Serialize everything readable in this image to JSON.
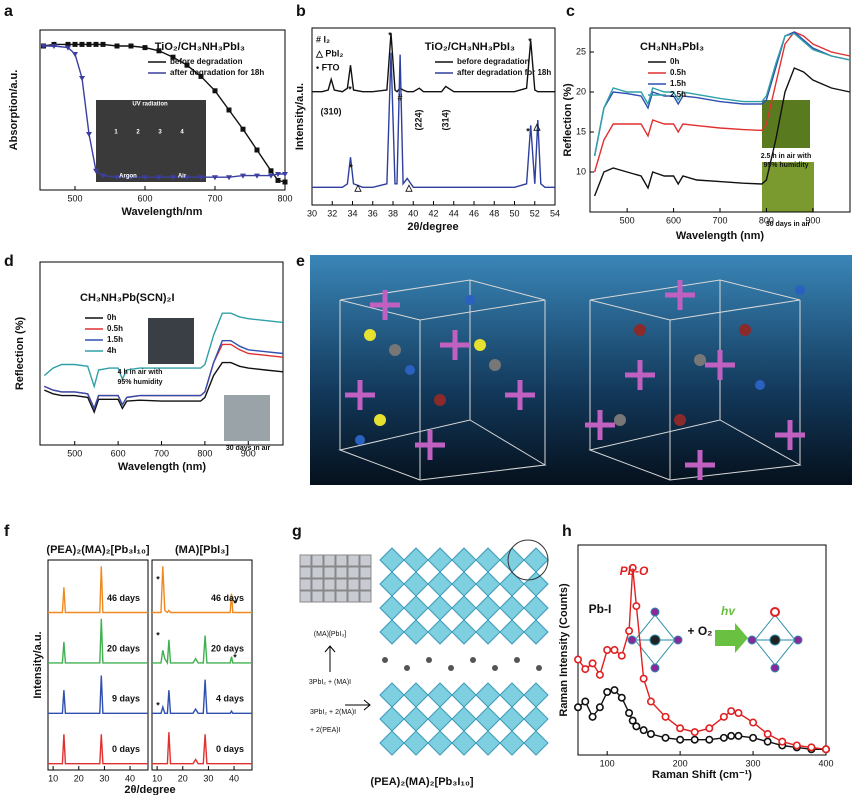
{
  "panel_labels": [
    "a",
    "b",
    "c",
    "d",
    "e",
    "f",
    "g",
    "h"
  ],
  "diagram_g": {
    "labels": [
      "(MA)[PbI₃]",
      "3PbI₂ + (MA)I",
      "3PbI₂ + 2(MA)I",
      "+ 2(PEA)I",
      "(PEA)₂(MA)₂[Pb₃I₁₀]"
    ]
  },
  "chart_data": [
    {
      "type": "line",
      "title": "TiO₂/CH₃NH₃PbI₃",
      "x_label": "Wavelength/nm",
      "y_label": "Absorption/a.u.",
      "x": [
        455,
        470,
        490,
        500,
        510,
        520,
        530,
        540,
        560,
        580,
        600,
        620,
        640,
        660,
        680,
        700,
        720,
        740,
        760,
        780,
        790,
        800
      ],
      "series": [
        {
          "name": "before degradation",
          "color": "#111111",
          "marker": "square",
          "values": [
            0.9,
            0.91,
            0.91,
            0.91,
            0.91,
            0.91,
            0.91,
            0.91,
            0.9,
            0.9,
            0.89,
            0.87,
            0.83,
            0.78,
            0.71,
            0.62,
            0.5,
            0.38,
            0.25,
            0.12,
            0.06,
            0.05
          ]
        },
        {
          "name": "after degradation for 18h",
          "color": "#3b3fa0",
          "marker": "triangle",
          "values": [
            0.9,
            0.9,
            0.89,
            0.85,
            0.7,
            0.35,
            0.12,
            0.09,
            0.08,
            0.08,
            0.08,
            0.08,
            0.08,
            0.08,
            0.08,
            0.08,
            0.08,
            0.09,
            0.09,
            0.09,
            0.1,
            0.1
          ]
        }
      ],
      "xlim": [
        450,
        800
      ],
      "xticks": [
        500,
        600,
        700,
        800
      ],
      "ylim": [
        0,
        1
      ],
      "legend": "upper right",
      "annotations": [
        "UV radiation",
        "1",
        "2",
        "3",
        "4",
        "Argon",
        "Air"
      ]
    },
    {
      "type": "line",
      "title": "TiO₂/CH₃NH₃PbI₃",
      "x_label": "2θ/degree",
      "y_label": "Intensity/a.u.",
      "x": [
        30,
        31,
        31.6,
        31.9,
        32.2,
        33,
        33.5,
        33.8,
        34.1,
        35,
        36,
        37.4,
        37.8,
        38.2,
        38.4,
        38.7,
        39,
        39.4,
        40,
        40.6,
        41,
        42,
        42.8,
        43.2,
        44,
        46,
        48,
        50,
        51.2,
        51.6,
        52,
        52.3,
        52.6,
        53,
        54
      ],
      "series": [
        {
          "name": "before degradation",
          "color": "#111111",
          "values": [
            64,
            64,
            65,
            71,
            65,
            64,
            66,
            79,
            65,
            64,
            64,
            65,
            97,
            65,
            64,
            66,
            65,
            64,
            64,
            66,
            64,
            64,
            64,
            67,
            64,
            64,
            64,
            64,
            66,
            93,
            65,
            64,
            64,
            64,
            64
          ]
        },
        {
          "name": "after degradation for 18h",
          "color": "#2f3f9e",
          "values": [
            10,
            10,
            10,
            10,
            10,
            10,
            12,
            27,
            12,
            10,
            10,
            12,
            86,
            12,
            12,
            85,
            12,
            15,
            10,
            10,
            10,
            10,
            10,
            10,
            10,
            10,
            10,
            10,
            12,
            45,
            12,
            48,
            12,
            10,
            10
          ]
        }
      ],
      "xlim": [
        30,
        54
      ],
      "xticks": [
        30,
        32,
        34,
        36,
        38,
        40,
        42,
        44,
        46,
        48,
        50,
        52,
        54
      ],
      "ylim": [
        0,
        100
      ],
      "legend": "upper right",
      "annotations": [
        "# I₂",
        "△ PbI₂",
        "• FTO",
        "(310)",
        "*",
        "*",
        "#",
        "(224)",
        "(314)",
        "*",
        "*",
        "△",
        "△",
        "*",
        "△"
      ]
    },
    {
      "type": "line",
      "title": "CH₃NH₃PbI₃",
      "x_label": "Wavelength (nm)",
      "y_label": "Reflection (%)",
      "x": [
        430,
        450,
        470,
        500,
        530,
        545,
        555,
        580,
        600,
        610,
        620,
        650,
        700,
        750,
        790,
        800,
        820,
        840,
        860,
        880,
        900,
        940,
        980
      ],
      "series": [
        {
          "name": "0h",
          "color": "#111111",
          "values": [
            7,
            10,
            10.5,
            10,
            9.5,
            8,
            10,
            9.5,
            9.5,
            8.5,
            9.5,
            9,
            8.8,
            8.6,
            8.5,
            9,
            14,
            20,
            23,
            22.5,
            21.5,
            20.5,
            20
          ]
        },
        {
          "name": "0.5h",
          "color": "#e03030",
          "values": [
            10,
            14,
            16,
            16,
            16,
            14.5,
            16.5,
            16,
            16,
            15,
            16,
            15.8,
            15.5,
            15.3,
            15.2,
            16,
            21,
            26,
            27.5,
            27,
            26,
            25,
            24.5
          ]
        },
        {
          "name": "1.5h",
          "color": "#3050b0",
          "values": [
            12,
            18,
            20,
            19.8,
            19.5,
            18,
            20,
            19.5,
            19.5,
            18.5,
            19.5,
            19.3,
            18.8,
            18.5,
            18.5,
            19,
            23,
            27,
            27.5,
            26.5,
            25.5,
            24.5,
            24
          ]
        },
        {
          "name": "2.5h",
          "color": "#30a0a8",
          "values": [
            12,
            18,
            20.5,
            20,
            20,
            18.5,
            20.5,
            20,
            20,
            19,
            20,
            19.7,
            19.2,
            18.8,
            18.8,
            19.5,
            23.5,
            27,
            27.3,
            26.3,
            25.3,
            24.5,
            24
          ]
        }
      ],
      "xlim": [
        420,
        980
      ],
      "xticks": [
        500,
        600,
        700,
        800,
        900
      ],
      "ylim": [
        5,
        28
      ],
      "yticks": [
        10,
        15,
        20,
        25
      ],
      "legend": "upper left",
      "annotations": [
        "2.5 h in air with",
        "95% humidity",
        "30 days in air"
      ]
    },
    {
      "type": "line",
      "title": "CH₃NH₃Pb(SCN)₂I",
      "x_label": "Wavelength (nm)",
      "y_label": "Reflection (%)",
      "x": [
        430,
        450,
        470,
        500,
        530,
        545,
        555,
        580,
        600,
        610,
        620,
        650,
        700,
        750,
        790,
        800,
        820,
        840,
        860,
        880,
        900,
        940,
        980
      ],
      "series": [
        {
          "name": "0h",
          "color": "#111111",
          "values": [
            30,
            28,
            27,
            27,
            26,
            18,
            25,
            25,
            25,
            20,
            24,
            24.5,
            24,
            24,
            24,
            26,
            38,
            45,
            45,
            43,
            42,
            41,
            40
          ]
        },
        {
          "name": "0.5h",
          "color": "#e03030",
          "values": [
            32,
            30,
            29,
            29,
            28,
            20,
            27,
            27,
            27,
            22,
            26,
            27,
            27,
            27,
            27,
            29,
            45,
            55,
            55,
            52,
            50,
            49,
            48
          ]
        },
        {
          "name": "1.5h",
          "color": "#3050b0",
          "values": [
            32,
            30,
            29,
            29,
            28,
            20,
            27,
            27,
            27,
            22,
            26,
            27,
            27,
            27,
            27,
            29,
            45,
            57,
            57,
            54,
            52,
            51,
            50
          ]
        },
        {
          "name": "4h",
          "color": "#30a0a8",
          "values": [
            38,
            42,
            44,
            44,
            43,
            32,
            41,
            42,
            42,
            36,
            41,
            42,
            42,
            42,
            42,
            44,
            60,
            72,
            72,
            70,
            69,
            68,
            67
          ]
        }
      ],
      "xlim": [
        420,
        980
      ],
      "xticks": [
        500,
        600,
        700,
        800,
        900
      ],
      "ylim": [
        0,
        100
      ],
      "legend": "upper left",
      "annotations": [
        "4 h in air with",
        "95% humidity",
        "30 days in air"
      ]
    },
    {
      "type": "line",
      "title": "(PEA)₂(MA)₂[Pb₃I₁₀]",
      "x_label": "2θ/degree",
      "y_label": "Intensity/a.u.",
      "x": [
        8,
        13.6,
        14.2,
        14.8,
        20,
        25,
        28.2,
        28.8,
        29.4,
        35,
        40,
        47
      ],
      "series": [
        {
          "name": "46 days",
          "color": "#f08a20",
          "values": [
            75,
            75,
            87,
            75,
            75,
            75,
            75,
            97,
            75,
            75,
            75,
            75
          ]
        },
        {
          "name": "20 days",
          "color": "#40b050",
          "values": [
            51,
            51,
            61,
            51,
            51,
            51,
            51,
            72,
            51,
            51,
            51,
            51
          ]
        },
        {
          "name": "9 days",
          "color": "#3050b0",
          "values": [
            27,
            27,
            38,
            27,
            27,
            27,
            27,
            45,
            27,
            27,
            27,
            27
          ]
        },
        {
          "name": "0 days",
          "color": "#e03030",
          "values": [
            3,
            3,
            17,
            3,
            3,
            3,
            3,
            17,
            3,
            3,
            3,
            3
          ]
        }
      ],
      "xlim": [
        8,
        47
      ],
      "xticks": [
        10,
        20,
        30,
        40
      ],
      "ylim": [
        0,
        100
      ],
      "legend": "inline"
    },
    {
      "type": "line",
      "title": "(MA)[PbI₃]",
      "x": [
        8,
        11.5,
        12.2,
        13,
        14,
        14.6,
        15.2,
        20,
        24,
        25,
        26,
        28,
        28.7,
        29.4,
        35,
        38.5,
        39,
        39.5,
        47
      ],
      "series": [
        {
          "name": "46 days",
          "color": "#f08a20",
          "values": [
            75,
            75,
            97,
            76,
            75,
            76,
            75,
            75,
            75,
            75,
            75,
            75,
            75,
            75,
            75,
            75,
            84,
            75,
            75
          ]
        },
        {
          "name": "20 days",
          "color": "#40b050",
          "values": [
            51,
            51,
            57,
            53,
            51,
            62,
            51,
            51,
            51,
            53,
            51,
            51,
            64,
            51,
            51,
            51,
            54,
            51,
            51
          ]
        },
        {
          "name": "4 days",
          "color": "#3050b0",
          "values": [
            27,
            27,
            30,
            27,
            27,
            38,
            27,
            27,
            27,
            29,
            27,
            27,
            43,
            27,
            27,
            27,
            28,
            27,
            27
          ]
        },
        {
          "name": "0 days",
          "color": "#e03030",
          "values": [
            3,
            3,
            3,
            3,
            3,
            18,
            3,
            3,
            3,
            5,
            3,
            3,
            17,
            3,
            3,
            3,
            3,
            3,
            3
          ]
        }
      ],
      "xlim": [
        8,
        47
      ],
      "xticks": [
        10,
        20,
        30,
        40
      ],
      "ylim": [
        0,
        100
      ],
      "legend": "inline",
      "annotations": [
        "*",
        "*",
        "*",
        "*",
        "*"
      ]
    },
    {
      "type": "line",
      "x_label": "Raman Shift (cm⁻¹)",
      "y_label": "Raman Intensity (Counts)",
      "x": [
        60,
        70,
        80,
        90,
        100,
        110,
        120,
        130,
        135,
        140,
        150,
        160,
        180,
        200,
        220,
        240,
        260,
        270,
        280,
        300,
        320,
        340,
        360,
        380,
        400
      ],
      "series": [
        {
          "color": "#111111",
          "marker": "circle",
          "values": [
            25,
            28,
            20,
            25,
            33,
            34,
            30,
            22,
            18,
            15,
            13,
            11,
            9,
            8,
            8,
            8,
            9,
            10,
            10,
            9,
            7,
            5,
            4,
            3,
            3
          ]
        },
        {
          "color": "#e02020",
          "marker": "circle",
          "values": [
            50,
            45,
            48,
            42,
            55,
            55,
            52,
            65,
            98,
            78,
            40,
            28,
            20,
            14,
            12,
            14,
            20,
            23,
            22,
            17,
            11,
            7,
            5,
            4,
            3
          ]
        }
      ],
      "xlim": [
        60,
        400
      ],
      "xticks": [
        100,
        200,
        300,
        400
      ],
      "ylim": [
        0,
        110
      ],
      "annotations": [
        "Pb-O",
        "Pb-I",
        "+ O₂",
        "hv"
      ]
    }
  ]
}
